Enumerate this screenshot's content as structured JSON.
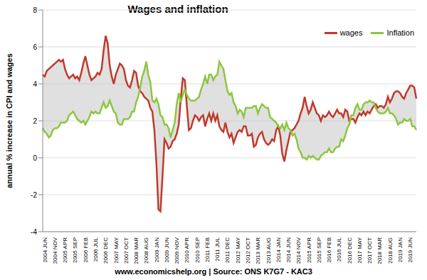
{
  "chart_data": {
    "type": "line",
    "title": "Wages and inflation",
    "ylabel": "annual % increase in CPI and wages",
    "annotations": [
      "www.economicshelp.org | Source: ONS K7G7 - KAC3"
    ],
    "categories": [
      "2004 JUN",
      null,
      null,
      null,
      null,
      "2004 NOV",
      null,
      null,
      null,
      null,
      "2005 APR",
      null,
      null,
      null,
      null,
      "2005 SEP",
      null,
      null,
      null,
      null,
      "2006 FEB",
      null,
      null,
      null,
      null,
      "2006 JUL",
      null,
      null,
      null,
      null,
      "2006 DEC",
      null,
      null,
      null,
      null,
      "2007 MAY",
      null,
      null,
      null,
      null,
      "2007 OCT",
      null,
      null,
      null,
      null,
      "2008 MAR",
      null,
      null,
      null,
      null,
      "2008 AUG",
      null,
      null,
      null,
      null,
      "2009 JAN",
      null,
      null,
      null,
      null,
      "2009 JUN",
      null,
      null,
      null,
      null,
      "2009 NOV",
      null,
      null,
      null,
      null,
      "2010 APR",
      null,
      null,
      null,
      null,
      "2010 SEP",
      null,
      null,
      null,
      null,
      "2011 FEB",
      null,
      null,
      null,
      null,
      "2011 JUL",
      null,
      null,
      null,
      null,
      "2011 DEC",
      null,
      null,
      null,
      null,
      "2012 MAY",
      null,
      null,
      null,
      null,
      "2012 OCT",
      null,
      null,
      null,
      null,
      "2013 MAR",
      null,
      null,
      null,
      null,
      "2013 AUG",
      null,
      null,
      null,
      null,
      "2014 JAN",
      null,
      null,
      null,
      null,
      "2014 JUN",
      null,
      null,
      null,
      null,
      "2014 NOV",
      null,
      null,
      null,
      null,
      "2015 APR",
      null,
      null,
      null,
      null,
      "2015 SEP",
      null,
      null,
      null,
      null,
      "2016 FEB",
      null,
      null,
      null,
      null,
      "2016 JUL",
      null,
      null,
      null,
      null,
      "2016 DEC",
      null,
      null,
      null,
      null,
      "2017 MAY",
      null,
      null,
      null,
      null,
      "2017 OCT",
      null,
      null,
      null,
      null,
      "2018 MAR",
      null,
      null,
      null,
      null,
      "2018 AUG",
      null,
      null,
      null,
      null,
      "2019 JAN",
      null,
      null,
      null,
      null,
      "2019 JUN",
      null,
      null,
      null,
      null
    ],
    "series": [
      {
        "name": "wages",
        "color": "#c0392b",
        "values": [
          4.5,
          4.4,
          4.7,
          4.8,
          4.9,
          5.0,
          5.1,
          5.2,
          5.3,
          5.2,
          5.3,
          4.8,
          4.5,
          4.3,
          4.4,
          4.5,
          4.3,
          4.4,
          4.2,
          4.6,
          5.1,
          5.5,
          5.0,
          4.5,
          4.2,
          4.3,
          4.4,
          4.6,
          4.5,
          4.8,
          5.8,
          6.6,
          6.2,
          5.0,
          4.4,
          4.0,
          4.5,
          4.8,
          5.1,
          5.0,
          4.8,
          4.2,
          3.9,
          3.8,
          4.2,
          4.7,
          4.6,
          3.9,
          3.6,
          3.5,
          3.3,
          3.2,
          3.1,
          2.7,
          2.5,
          1.5,
          -0.3,
          -2.8,
          -2.9,
          -1.0,
          1.0,
          0.8,
          0.5,
          0.6,
          0.9,
          1.0,
          1.3,
          1.8,
          3.2,
          4.3,
          4.2,
          2.8,
          1.5,
          1.6,
          2.0,
          2.3,
          2.2,
          2.0,
          2.2,
          2.3,
          1.7,
          2.1,
          2.4,
          2.0,
          2.4,
          2.0,
          2.3,
          1.7,
          1.5,
          1.4,
          1.9,
          1.4,
          1.1,
          1.3,
          0.8,
          1.1,
          1.4,
          1.5,
          1.4,
          1.7,
          1.7,
          1.2,
          1.2,
          1.3,
          0.6,
          0.7,
          1.1,
          1.3,
          1.4,
          1.0,
          0.8,
          0.7,
          0.8,
          1.0,
          0.9,
          1.5,
          1.7,
          1.2,
          0.2,
          -0.2,
          0.4,
          0.9,
          1.4,
          1.5,
          1.6,
          1.8,
          2.0,
          2.4,
          2.7,
          3.3,
          2.8,
          2.4,
          2.6,
          3.0,
          2.7,
          2.4,
          2.3,
          2.0,
          2.3,
          2.2,
          2.3,
          2.5,
          2.3,
          2.2,
          2.4,
          2.6,
          2.4,
          2.4,
          2.2,
          2.6,
          2.5,
          2.0,
          2.1,
          2.1,
          1.9,
          2.2,
          2.4,
          2.3,
          2.5,
          2.3,
          2.5,
          2.4,
          2.6,
          2.8,
          2.9,
          2.7,
          2.8,
          2.8,
          2.7,
          2.9,
          3.3,
          3.0,
          3.2,
          3.5,
          3.6,
          3.6,
          3.5,
          3.3,
          3.2,
          3.5,
          3.7,
          3.9,
          3.9,
          3.8,
          3.2
        ]
      },
      {
        "name": "Inflation",
        "color": "#8dc63f",
        "values": [
          1.6,
          1.4,
          1.3,
          1.1,
          1.2,
          1.5,
          1.6,
          1.6,
          1.7,
          1.9,
          1.9,
          1.9,
          2.0,
          2.3,
          2.4,
          2.5,
          2.3,
          2.1,
          2.0,
          1.9,
          2.0,
          1.8,
          2.0,
          2.2,
          2.5,
          2.4,
          2.5,
          2.4,
          2.4,
          2.7,
          3.0,
          2.7,
          2.8,
          3.1,
          2.8,
          2.5,
          2.4,
          1.9,
          1.8,
          1.8,
          2.1,
          2.1,
          2.1,
          2.2,
          2.5,
          2.5,
          3.0,
          3.3,
          3.8,
          4.4,
          4.7,
          5.2,
          4.5,
          4.1,
          3.1,
          3.0,
          3.2,
          2.9,
          2.3,
          2.2,
          1.8,
          1.8,
          1.6,
          1.1,
          1.5,
          1.9,
          2.9,
          3.5,
          3.0,
          3.4,
          3.7,
          3.4,
          3.2,
          3.1,
          3.1,
          3.1,
          3.2,
          3.3,
          3.7,
          4.0,
          4.4,
          4.0,
          4.5,
          4.5,
          4.2,
          4.4,
          4.5,
          5.2,
          5.0,
          4.8,
          4.2,
          3.6,
          3.4,
          3.5,
          3.0,
          2.8,
          2.4,
          2.6,
          2.5,
          2.2,
          2.7,
          2.7,
          2.7,
          2.7,
          2.8,
          2.8,
          2.4,
          2.7,
          2.9,
          2.8,
          2.7,
          2.7,
          2.2,
          2.1,
          2.0,
          1.9,
          1.7,
          1.6,
          1.8,
          1.5,
          1.9,
          1.6,
          1.5,
          1.2,
          1.3,
          1.0,
          0.5,
          0.3,
          0.0,
          0.0,
          -0.1,
          0.1,
          0.0,
          0.1,
          0.0,
          -0.1,
          -0.1,
          0.1,
          0.2,
          0.3,
          0.3,
          0.5,
          0.3,
          0.3,
          0.5,
          0.6,
          0.6,
          1.0,
          0.9,
          1.2,
          1.6,
          1.8,
          2.3,
          2.3,
          2.7,
          2.9,
          2.6,
          2.6,
          2.9,
          3.0,
          3.0,
          3.1,
          3.0,
          3.0,
          2.7,
          2.5,
          2.4,
          2.4,
          2.4,
          2.5,
          2.7,
          2.4,
          2.4,
          2.3,
          2.1,
          1.8,
          1.9,
          1.9,
          2.1,
          2.0,
          2.0,
          2.1,
          1.7,
          1.7,
          1.5
        ]
      }
    ],
    "ylim": [
      -4,
      8
    ],
    "yticks": [
      -4,
      -2,
      0,
      2,
      4,
      6,
      8
    ],
    "grid": true,
    "legend": "top-right"
  }
}
